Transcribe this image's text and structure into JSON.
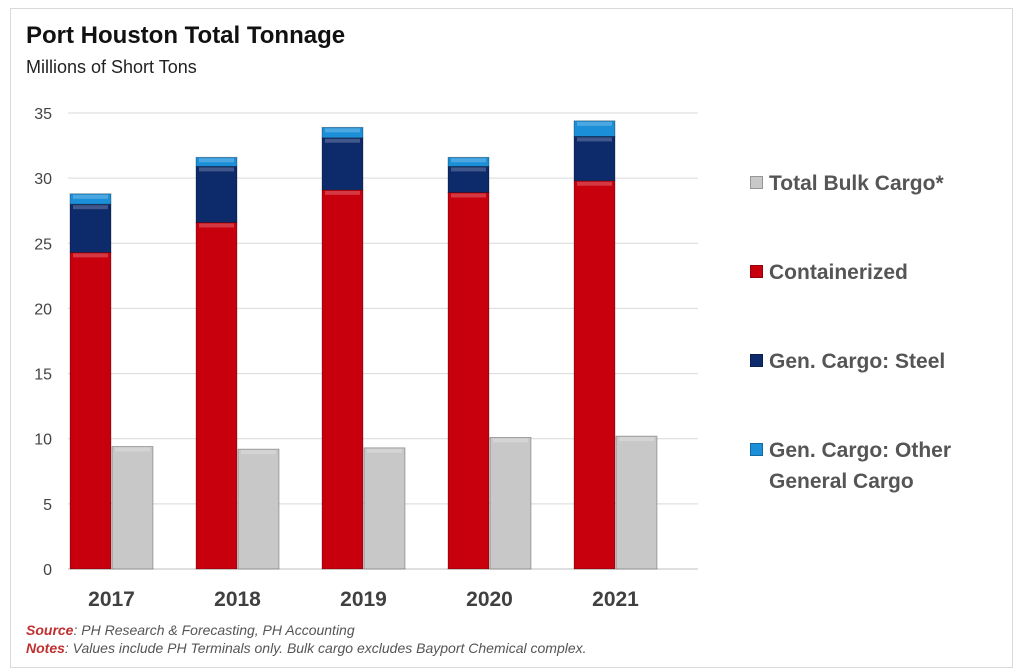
{
  "chart_data": {
    "type": "bar",
    "title": "Port Houston Total Tonnage",
    "subtitle": "Millions of Short Tons",
    "categories": [
      "2017",
      "2018",
      "2019",
      "2020",
      "2021"
    ],
    "stacked_series": [
      {
        "name": "Containerized",
        "color": "#c8000e",
        "values": [
          24.3,
          26.6,
          29.1,
          28.9,
          29.8
        ]
      },
      {
        "name": "Gen. Cargo: Steel",
        "color": "#0d2a6b",
        "values": [
          3.7,
          4.3,
          4.0,
          2.0,
          3.4
        ]
      },
      {
        "name": "Gen. Cargo: Other General Cargo",
        "color": "#1b8fd8",
        "values": [
          0.8,
          0.7,
          0.8,
          0.7,
          1.2
        ]
      }
    ],
    "side_series": {
      "name": "Total Bulk Cargo*",
      "color": "#c8c8c8",
      "values": [
        9.4,
        9.2,
        9.3,
        10.1,
        10.2
      ]
    },
    "ylim": [
      0,
      35
    ],
    "yticks": [
      "0",
      "5",
      "10",
      "15",
      "20",
      "25",
      "30",
      "35"
    ],
    "grid": true,
    "legend_position": "right",
    "legend": [
      {
        "label": "Total Bulk Cargo*",
        "color": "#c8c8c8"
      },
      {
        "label": "Containerized",
        "color": "#c8000e"
      },
      {
        "label": "Gen. Cargo: Steel",
        "color": "#0d2a6b"
      },
      {
        "label": "Gen. Cargo: Other General Cargo",
        "color": "#1b8fd8"
      }
    ]
  },
  "footer": {
    "source_label": "Source",
    "source_text": ": PH Research & Forecasting, PH Accounting",
    "notes_label": "Notes",
    "notes_text": ": Values include PH Terminals only. Bulk cargo excludes Bayport Chemical complex."
  }
}
